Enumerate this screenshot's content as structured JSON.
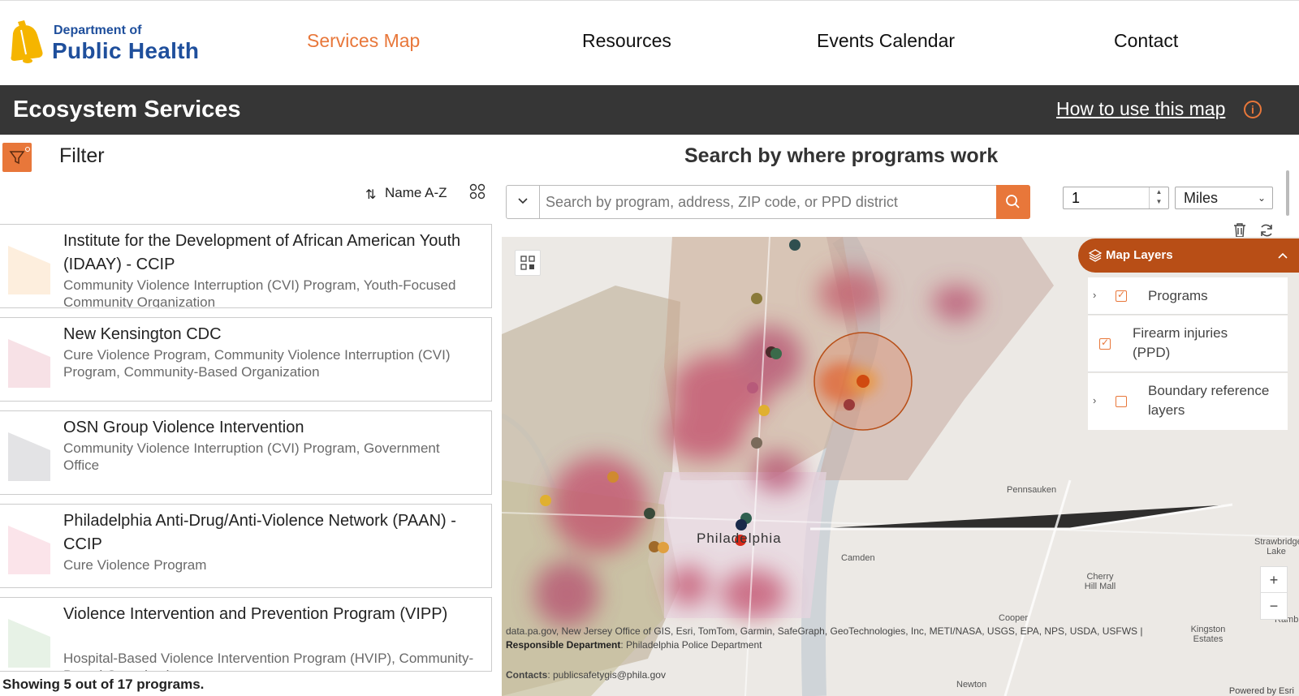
{
  "brand": {
    "line1": "Department of",
    "line2": "Public Health",
    "color": "#1f4f9c"
  },
  "nav": [
    {
      "label": "Services Map",
      "active": true
    },
    {
      "label": "Resources",
      "active": false
    },
    {
      "label": "Events Calendar",
      "active": false
    },
    {
      "label": "Contact",
      "active": false
    }
  ],
  "titlebar": {
    "title": "Ecosystem Services",
    "help_link": "How to use this map"
  },
  "filter": {
    "label": "Filter"
  },
  "sort": {
    "label": "Name A-Z"
  },
  "programs": [
    {
      "name": "Institute for the Development of African American Youth (IDAAY) - CCIP",
      "desc": "Community Violence Interruption (CVI) Program, Youth-Focused Community Organization",
      "thumb_color": "#fdeedd"
    },
    {
      "name": "New Kensington CDC",
      "desc": "Cure Violence Program, Community Violence Interruption (CVI) Program, Community-Based Organization",
      "thumb_color": "#f7e1e6"
    },
    {
      "name": "OSN Group Violence Intervention",
      "desc": "Community Violence Interruption (CVI) Program, Government Office",
      "thumb_color": "#e3e3e5"
    },
    {
      "name": "Philadelphia Anti-Drug/Anti-Violence Network (PAAN) - CCIP",
      "desc": "Cure Violence Program",
      "thumb_color": "#fbe4ea"
    },
    {
      "name": "Violence Intervention and Prevention Program (VIPP)",
      "desc": "Hospital-Based Violence Intervention Program (HVIP), Community-Based Organization",
      "thumb_color": "#e7f2e6"
    }
  ],
  "showing": "Showing 5 out of 17 programs.",
  "search": {
    "title": "Search by where programs work",
    "placeholder": "Search by program, address, ZIP code, or PPD district",
    "distance": "1",
    "units": "Miles"
  },
  "map": {
    "labels": {
      "city": "Philadelphia",
      "pennsauken": "Pennsauken",
      "camden": "Camden",
      "cherry_hill": "Cherry Hill Mall",
      "strawbridge": "Strawbridge Lake",
      "kingston": "Kingston Estates",
      "newton": "Newton",
      "cooper": "Cooper",
      "ramb": "Ramb"
    },
    "attribution": "data.pa.gov, New Jersey Office of GIS, Esri, TomTom, Garmin, SafeGraph, GeoTechnologies, Inc, METI/NASA, USGS, EPA, NPS, USDA, USFWS |",
    "responsible_label": "Responsible Department",
    "responsible_value": ": Philadelphia Police Department",
    "contacts_label": "Contacts",
    "contacts_value": ": publicsafetygis@phila.gov",
    "powered": "Powered by Esri",
    "zoom_in": "+",
    "zoom_out": "−"
  },
  "layers": {
    "title": "Map Layers",
    "items": [
      {
        "label": "Programs",
        "checked": true,
        "expandable": true
      },
      {
        "label": "Firearm injuries (PPD)",
        "checked": true,
        "expandable": false
      },
      {
        "label": "Boundary reference layers",
        "checked": false,
        "expandable": true
      }
    ]
  },
  "accent": "#e8773a",
  "dark": "#363636"
}
